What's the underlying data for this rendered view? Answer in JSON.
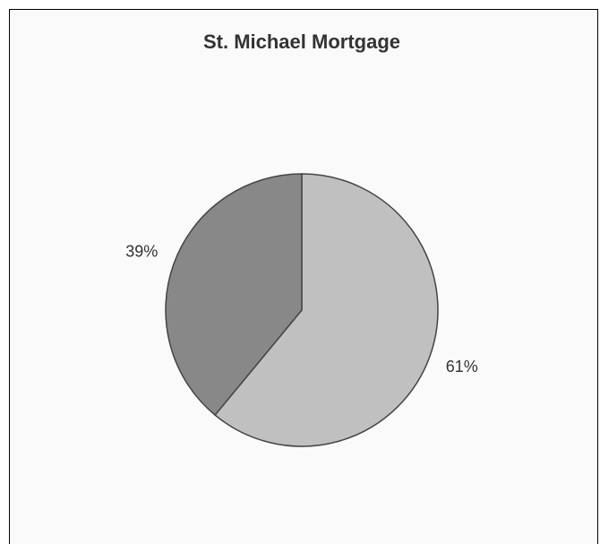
{
  "chart_data": {
    "type": "pie",
    "title": "St. Michael Mortgage",
    "values": [
      61,
      39
    ],
    "value_labels": [
      "61%",
      "39%"
    ],
    "colors": [
      "#c0c0c0",
      "#888888"
    ]
  }
}
